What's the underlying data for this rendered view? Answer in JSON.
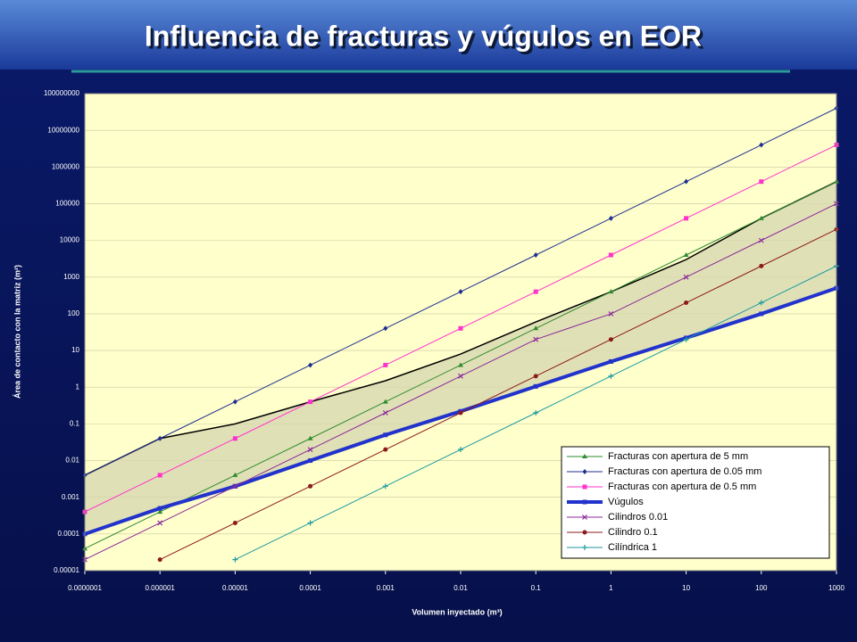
{
  "chart_data": {
    "type": "line",
    "title": "Influencia de fracturas y vúgulos en EOR",
    "xlabel": "Volumen inyectado (m³)",
    "ylabel": "Área de contacto con la matriz (m²)",
    "xscale": "log",
    "yscale": "log",
    "x": [
      1e-07,
      1e-06,
      1e-05,
      0.0001,
      0.001,
      0.01,
      0.1,
      1,
      10,
      100,
      1000
    ],
    "xlim": [
      1e-07,
      1000
    ],
    "ylim": [
      1e-05,
      100000000
    ],
    "xticks": [
      {
        "value": 1e-07,
        "label": "0.0000001"
      },
      1e-06,
      1e-05,
      0.0001,
      0.001,
      0.01,
      0.1,
      1,
      10,
      100,
      1000
    ],
    "yticks": [
      1e-05,
      0.0001,
      0.001,
      0.01,
      0.1,
      1,
      10,
      100,
      1000,
      10000,
      100000,
      1000000,
      10000000,
      100000000
    ],
    "grid": true,
    "legend": "lower right",
    "envelope": {
      "color": "#000000",
      "values": [
        0.004,
        0.04,
        0.1,
        0.4,
        1.5,
        8,
        60,
        400,
        3000,
        40000,
        400000
      ]
    },
    "series": [
      {
        "name": "Fracturas con apertura de 5 mm",
        "color": "#2e8b2e",
        "marker": "triangle",
        "values": [
          4e-05,
          0.0004,
          0.004,
          0.04,
          0.4,
          4,
          40,
          400,
          4000,
          40000,
          400000
        ]
      },
      {
        "name": "Fracturas con apertura de 0.05 mm",
        "color": "#1f2f8f",
        "marker": "diamond",
        "values": [
          0.004,
          0.04,
          0.4,
          4,
          40,
          400,
          4000,
          40000,
          400000,
          4000000,
          40000000
        ]
      },
      {
        "name": "Fracturas con apertura de 0.5 mm",
        "color": "#ff33cc",
        "marker": "square",
        "values": [
          0.0004,
          0.004,
          0.04,
          0.4,
          4,
          40,
          400,
          4000,
          40000,
          400000,
          4000000
        ]
      },
      {
        "name": "Vúgulos",
        "color": "#2233cc",
        "marker": "square",
        "width": 4,
        "values": [
          0.0001,
          0.0005,
          0.002,
          0.01,
          0.05,
          0.22,
          1.05,
          5,
          22,
          100,
          500
        ]
      },
      {
        "name": "Cilindros 0.01",
        "color": "#8a2a9a",
        "marker": "x",
        "values": [
          2e-05,
          0.0002,
          0.002,
          0.02,
          0.2,
          2,
          20,
          100,
          1000,
          10000,
          100000
        ]
      },
      {
        "name": "Cilindro 0.1",
        "color": "#8b1a1a",
        "marker": "circle",
        "values": [
          null,
          2e-05,
          0.0002,
          0.002,
          0.02,
          0.2,
          2,
          20,
          200,
          2000,
          20000
        ]
      },
      {
        "name": "Cilíndrica 1",
        "color": "#1e9aa0",
        "marker": "plus",
        "values": [
          null,
          null,
          2e-05,
          0.0002,
          0.002,
          0.02,
          0.2,
          2,
          20,
          200,
          2000
        ]
      }
    ]
  }
}
